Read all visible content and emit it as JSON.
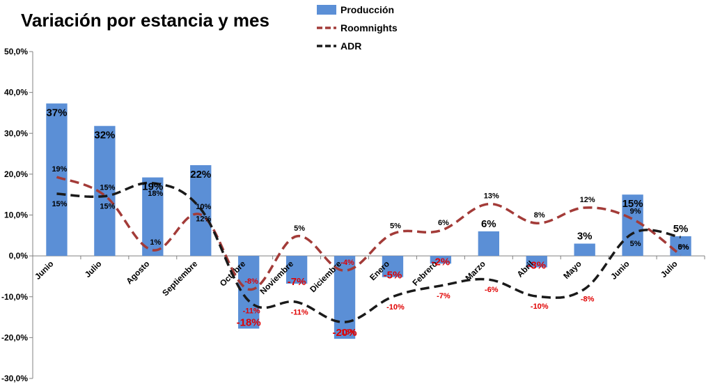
{
  "chart_data": {
    "type": "bar",
    "title": "Variación por estancia y mes",
    "xlabel": "",
    "ylabel": "",
    "ylim": [
      -30,
      50
    ],
    "yticks": [
      "50,0%",
      "40,0%",
      "30,0%",
      "20,0%",
      "10,0%",
      "0,0%",
      "-10,0%",
      "-20,0%",
      "-30,0%"
    ],
    "ytick_values": [
      50,
      40,
      30,
      20,
      10,
      0,
      -10,
      -20,
      -30
    ],
    "categories": [
      "Junio",
      "Julio",
      "Agosto",
      "Septiembre",
      "Octubre",
      "Noviembre",
      "Diciembre",
      "Enero",
      "Febrero",
      "Marzo",
      "Abril",
      "Mayo",
      "Junio",
      "Julio"
    ],
    "legend_position": "top-center",
    "grid": false,
    "series": [
      {
        "name": "Producción",
        "kind": "bar",
        "color": "#5B8FD6",
        "values": [
          37.3,
          31.8,
          19.2,
          22.2,
          -17.8,
          -6.8,
          -20.3,
          -5.2,
          -1.9,
          6.0,
          -2.8,
          3.0,
          15.0,
          4.8
        ],
        "labels": [
          "37%",
          "32%",
          "19%",
          "22%",
          "-18%",
          "-7%",
          "-20%",
          "-5%",
          "-2%",
          "6%",
          "-3%",
          "3%",
          "15%",
          "5%"
        ]
      },
      {
        "name": "Roomnights",
        "kind": "line",
        "color": "#A33B38",
        "values": [
          19.3,
          14.8,
          1.4,
          10.1,
          -8.2,
          4.8,
          -3.6,
          5.4,
          6.2,
          12.7,
          8.0,
          11.8,
          9.0,
          0.2
        ],
        "labels": [
          "19%",
          "15%",
          "1%",
          "10%",
          "-8%",
          "5%",
          "-4%",
          "5%",
          "6%",
          "13%",
          "8%",
          "12%",
          "9%",
          "0%"
        ]
      },
      {
        "name": "ADR",
        "kind": "line",
        "color": "#1A1A1A",
        "values": [
          15.2,
          14.6,
          17.8,
          11.5,
          -11.0,
          -11.3,
          -16.2,
          -10.0,
          -7.3,
          -5.8,
          -9.9,
          -8.1,
          5.5,
          4.6
        ],
        "labels": [
          "15%",
          "15%",
          "18%",
          "12%",
          "-11%",
          "-11%",
          "-16%",
          "-10%",
          "-7%",
          "-6%",
          "-10%",
          "-8%",
          "5%",
          "5%"
        ]
      }
    ]
  }
}
